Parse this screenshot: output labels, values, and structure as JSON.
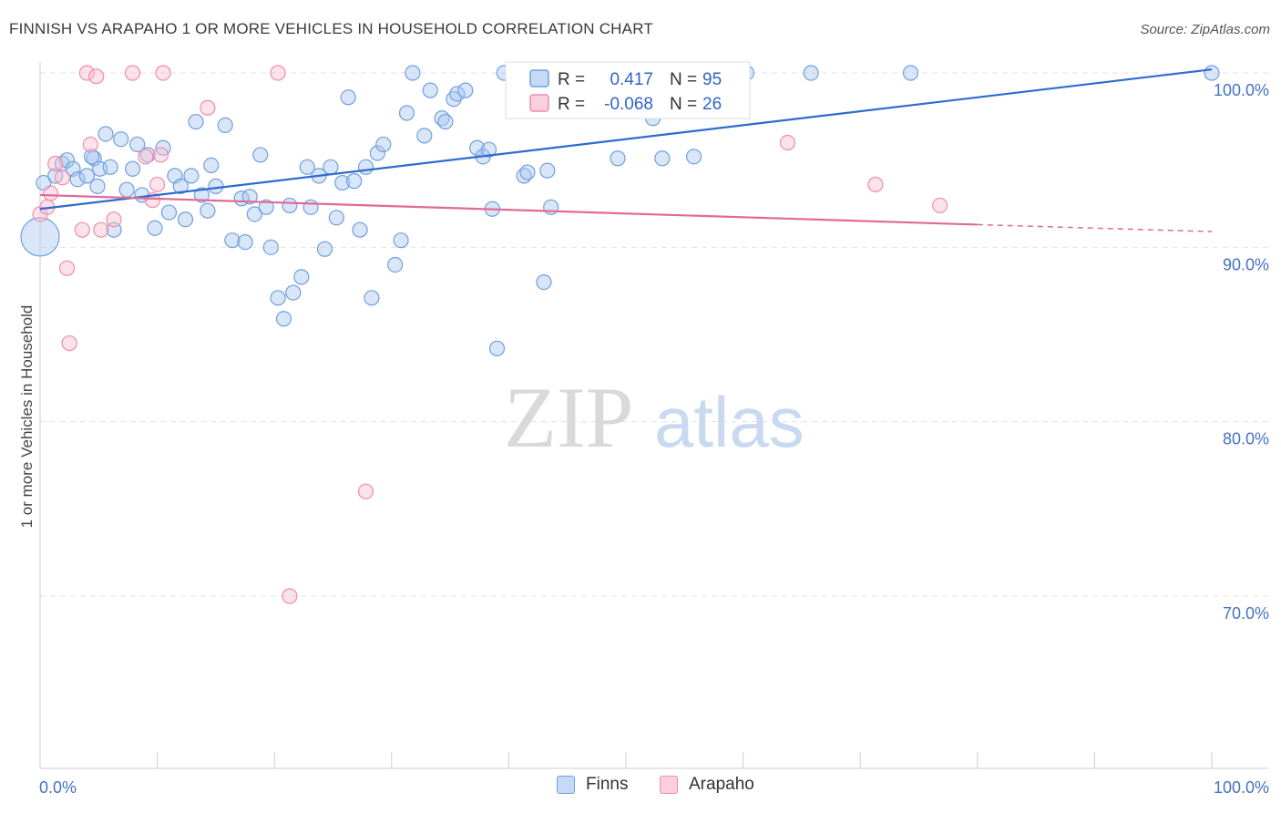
{
  "title": "FINNISH VS ARAPAHO 1 OR MORE VEHICLES IN HOUSEHOLD CORRELATION CHART",
  "source": "Source: ZipAtlas.com",
  "watermark": {
    "zip": "ZIP",
    "atlas": "atlas"
  },
  "legend": {
    "rows": [
      {
        "r_label": "R =",
        "r_value": "0.417",
        "n_label": "N =",
        "n_value": "95",
        "color": "#6f9fe0"
      },
      {
        "r_label": "R =",
        "r_value": "-0.068",
        "n_label": "N =",
        "n_value": "26",
        "color": "#f08caa"
      }
    ]
  },
  "chart_data": {
    "type": "scatter",
    "title": "FINNISH VS ARAPAHO 1 OR MORE VEHICLES IN HOUSEHOLD CORRELATION CHART",
    "xlabel": "",
    "ylabel": "1 or more Vehicles in Household",
    "xlim": [
      0,
      100
    ],
    "ylim": [
      59,
      101
    ],
    "x_tick_labels": [
      "0.0%",
      "100.0%"
    ],
    "y_ticks": [
      70,
      80,
      90,
      100
    ],
    "y_tick_labels": [
      "70.0%",
      "80.0%",
      "90.0%",
      "100.0%"
    ],
    "grid": true,
    "legend_position": "top-center",
    "series": [
      {
        "name": "Finns",
        "color": "#6f9fe0",
        "r": 0.417,
        "n": 95,
        "trend": {
          "x0": 0,
          "y0": 92.2,
          "x1": 100,
          "y1": 100.2
        },
        "points": [
          [
            0,
            90.6
          ],
          [
            0.3,
            93.7
          ],
          [
            1.3,
            94.1
          ],
          [
            1.9,
            94.8
          ],
          [
            2.3,
            95.0
          ],
          [
            2.8,
            94.5
          ],
          [
            3.2,
            93.9
          ],
          [
            4.0,
            94.1
          ],
          [
            4.6,
            95.1
          ],
          [
            4.4,
            95.2
          ],
          [
            5.1,
            94.5
          ],
          [
            4.9,
            93.5
          ],
          [
            5.6,
            96.5
          ],
          [
            6.0,
            94.6
          ],
          [
            6.3,
            91.0
          ],
          [
            6.9,
            96.2
          ],
          [
            7.4,
            93.3
          ],
          [
            7.9,
            94.5
          ],
          [
            8.3,
            95.9
          ],
          [
            8.7,
            93.0
          ],
          [
            9.2,
            95.3
          ],
          [
            9.8,
            91.1
          ],
          [
            10.5,
            95.7
          ],
          [
            11.0,
            92.0
          ],
          [
            11.5,
            94.1
          ],
          [
            12.0,
            93.5
          ],
          [
            12.4,
            91.6
          ],
          [
            12.9,
            94.1
          ],
          [
            13.3,
            97.2
          ],
          [
            13.8,
            93.0
          ],
          [
            14.3,
            92.1
          ],
          [
            14.6,
            94.7
          ],
          [
            15.0,
            93.5
          ],
          [
            15.8,
            97.0
          ],
          [
            16.4,
            90.4
          ],
          [
            17.2,
            92.8
          ],
          [
            17.5,
            90.3
          ],
          [
            17.9,
            92.9
          ],
          [
            18.3,
            91.9
          ],
          [
            18.8,
            95.3
          ],
          [
            19.3,
            92.3
          ],
          [
            19.7,
            90.0
          ],
          [
            20.3,
            87.1
          ],
          [
            20.8,
            85.9
          ],
          [
            21.3,
            92.4
          ],
          [
            21.6,
            87.4
          ],
          [
            22.3,
            88.3
          ],
          [
            22.8,
            94.6
          ],
          [
            23.1,
            92.3
          ],
          [
            23.8,
            94.1
          ],
          [
            24.3,
            89.9
          ],
          [
            24.8,
            94.6
          ],
          [
            25.3,
            91.7
          ],
          [
            25.8,
            93.7
          ],
          [
            26.3,
            98.6
          ],
          [
            26.8,
            93.8
          ],
          [
            27.3,
            91.0
          ],
          [
            27.8,
            94.6
          ],
          [
            28.3,
            87.1
          ],
          [
            28.8,
            95.4
          ],
          [
            29.3,
            95.9
          ],
          [
            30.3,
            89.0
          ],
          [
            30.8,
            90.4
          ],
          [
            31.3,
            97.7
          ],
          [
            31.8,
            100.0
          ],
          [
            32.8,
            96.4
          ],
          [
            33.3,
            99.0
          ],
          [
            34.3,
            97.4
          ],
          [
            34.6,
            97.2
          ],
          [
            35.3,
            98.5
          ],
          [
            35.6,
            98.8
          ],
          [
            36.3,
            99.0
          ],
          [
            37.3,
            95.7
          ],
          [
            37.8,
            95.2
          ],
          [
            38.3,
            95.6
          ],
          [
            38.6,
            92.2
          ],
          [
            39.0,
            84.2
          ],
          [
            39.6,
            100.0
          ],
          [
            41.3,
            94.1
          ],
          [
            41.6,
            94.3
          ],
          [
            43.3,
            94.4
          ],
          [
            43.6,
            92.3
          ],
          [
            43.0,
            88.0
          ],
          [
            44.3,
            97.9
          ],
          [
            46.3,
            100.0
          ],
          [
            49.3,
            95.1
          ],
          [
            52.3,
            97.4
          ],
          [
            53.1,
            95.1
          ],
          [
            55.8,
            95.2
          ],
          [
            56.3,
            100.0
          ],
          [
            57.3,
            97.9
          ],
          [
            58.3,
            100.0
          ],
          [
            60.3,
            100.0
          ],
          [
            65.8,
            100.0
          ],
          [
            74.3,
            100.0
          ],
          [
            100.0,
            100.0
          ]
        ]
      },
      {
        "name": "Arapaho",
        "color": "#f08caa",
        "r": -0.068,
        "n": 26,
        "trend": {
          "x0": 0,
          "y0": 93.0,
          "x1": 80,
          "y1": 91.3,
          "dash_to_x": 100,
          "dash_to_y": 90.9
        },
        "points": [
          [
            0.0,
            91.9
          ],
          [
            0.6,
            92.3
          ],
          [
            0.9,
            93.1
          ],
          [
            1.3,
            94.8
          ],
          [
            1.9,
            94.0
          ],
          [
            2.3,
            88.8
          ],
          [
            2.5,
            84.5
          ],
          [
            3.6,
            91.0
          ],
          [
            4.0,
            100.0
          ],
          [
            4.3,
            95.9
          ],
          [
            4.8,
            99.8
          ],
          [
            5.2,
            91.0
          ],
          [
            6.3,
            91.6
          ],
          [
            7.9,
            100.0
          ],
          [
            9.0,
            95.2
          ],
          [
            9.6,
            92.7
          ],
          [
            10.0,
            93.6
          ],
          [
            10.3,
            95.3
          ],
          [
            10.5,
            100.0
          ],
          [
            14.3,
            98.0
          ],
          [
            20.3,
            100.0
          ],
          [
            21.3,
            70.0
          ],
          [
            27.8,
            76.0
          ],
          [
            63.8,
            96.0
          ],
          [
            71.3,
            93.6
          ],
          [
            76.8,
            92.4
          ]
        ]
      }
    ]
  }
}
